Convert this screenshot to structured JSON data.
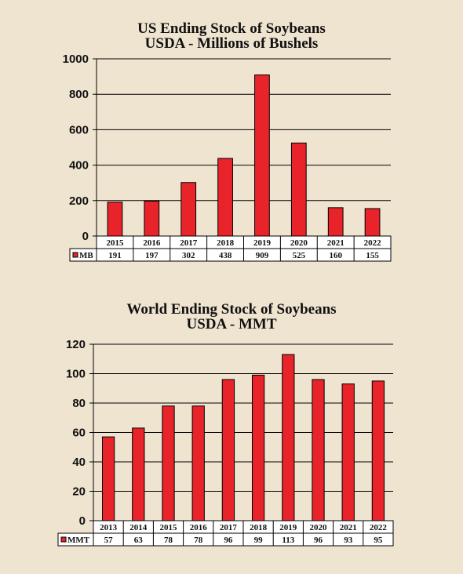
{
  "chart_data": [
    {
      "type": "bar",
      "title": "US Ending Stock of Soybeans",
      "subtitle": "USDA - Millions of Bushels",
      "categories": [
        "2015",
        "2016",
        "2017",
        "2018",
        "2019",
        "2020",
        "2021",
        "2022"
      ],
      "series": [
        {
          "name": "MB",
          "values": [
            191,
            197,
            302,
            438,
            909,
            525,
            160,
            155
          ]
        }
      ],
      "ylim": [
        0,
        1000
      ],
      "yticks": [
        0,
        200,
        400,
        600,
        800,
        1000
      ],
      "grid": true,
      "bar_color": "#e8232a",
      "legend": "data-table"
    },
    {
      "type": "bar",
      "title": "World Ending Stock of Soybeans",
      "subtitle": "USDA - MMT",
      "categories": [
        "2013",
        "2014",
        "2015",
        "2016",
        "2017",
        "2018",
        "2019",
        "2020",
        "2021",
        "2022"
      ],
      "series": [
        {
          "name": "MMT",
          "values": [
            57,
            63,
            78,
            78,
            96,
            99,
            113,
            96,
            93,
            95
          ]
        }
      ],
      "ylim": [
        0,
        120
      ],
      "yticks": [
        0,
        20,
        40,
        60,
        80,
        100,
        120
      ],
      "grid": true,
      "bar_color": "#e8232a",
      "legend": "data-table"
    }
  ]
}
